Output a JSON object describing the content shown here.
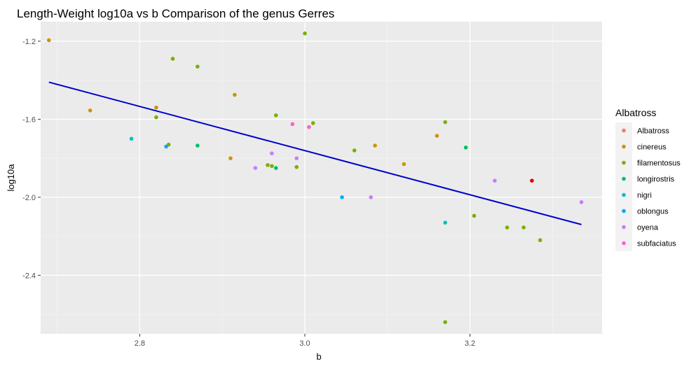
{
  "chart_data": {
    "type": "scatter",
    "title": "Length-Weight log10a vs b Comparison of the genus Gerres",
    "xlabel": "b",
    "ylabel": "log10a",
    "xlim": [
      2.68,
      3.36
    ],
    "ylim": [
      -2.7,
      -1.1
    ],
    "xticks": [
      2.8,
      3.0,
      3.2
    ],
    "xtick_labels": [
      "2.8",
      "3.0",
      "3.2"
    ],
    "yticks": [
      -1.2,
      -1.6,
      -2.0,
      -2.4
    ],
    "ytick_labels": [
      "-1.2",
      "-1.6",
      "-2.0",
      "-2.4"
    ],
    "grid": true,
    "legend": {
      "title": "Albatross",
      "position": "right"
    },
    "series": [
      {
        "name": "Albatross",
        "color": "#F8766D",
        "points": []
      },
      {
        "name": "cinereus",
        "color": "#CD9600",
        "points": [
          [
            2.69,
            -1.195
          ],
          [
            2.74,
            -1.555
          ],
          [
            2.82,
            -1.54
          ],
          [
            2.91,
            -1.8
          ],
          [
            2.915,
            -1.475
          ],
          [
            3.085,
            -1.735
          ],
          [
            3.12,
            -1.83
          ],
          [
            3.16,
            -1.685
          ]
        ]
      },
      {
        "name": "filamentosus",
        "color": "#7CAE00",
        "points": [
          [
            2.84,
            -1.29
          ],
          [
            2.87,
            -1.33
          ],
          [
            2.82,
            -1.59
          ],
          [
            2.835,
            -1.73
          ],
          [
            3.0,
            -1.16
          ],
          [
            2.965,
            -1.58
          ],
          [
            3.01,
            -1.62
          ],
          [
            2.955,
            -1.835
          ],
          [
            2.96,
            -1.84
          ],
          [
            2.99,
            -1.845
          ],
          [
            3.06,
            -1.76
          ],
          [
            3.17,
            -1.615
          ],
          [
            3.205,
            -2.095
          ],
          [
            3.245,
            -2.155
          ],
          [
            3.265,
            -2.155
          ],
          [
            3.285,
            -2.22
          ],
          [
            3.17,
            -2.64
          ]
        ]
      },
      {
        "name": "longirostris",
        "color": "#00BE67",
        "points": [
          [
            2.87,
            -1.735
          ],
          [
            2.965,
            -1.85
          ],
          [
            3.195,
            -1.745
          ]
        ]
      },
      {
        "name": "nigri",
        "color": "#00BFC4",
        "points": [
          [
            2.79,
            -1.7
          ],
          [
            3.17,
            -2.13
          ]
        ]
      },
      {
        "name": "oblongus",
        "color": "#00A9FF",
        "points": [
          [
            2.832,
            -1.74
          ],
          [
            3.045,
            -2.0
          ]
        ]
      },
      {
        "name": "oyena",
        "color": "#C77CFF",
        "points": [
          [
            2.94,
            -1.85
          ],
          [
            2.96,
            -1.775
          ],
          [
            2.99,
            -1.8
          ],
          [
            3.08,
            -2.0
          ],
          [
            3.23,
            -1.915
          ],
          [
            3.335,
            -2.025
          ]
        ]
      },
      {
        "name": "subfaciatus",
        "color": "#FF61CC",
        "points": [
          [
            2.985,
            -1.625
          ],
          [
            3.005,
            -1.64
          ]
        ]
      }
    ],
    "highlight_points": [
      {
        "x": 3.275,
        "y": -1.915,
        "color": "#E00000"
      }
    ],
    "trend_line": {
      "color": "#0000CD",
      "x": [
        2.69,
        3.335
      ],
      "y": [
        -1.41,
        -2.14
      ]
    }
  }
}
